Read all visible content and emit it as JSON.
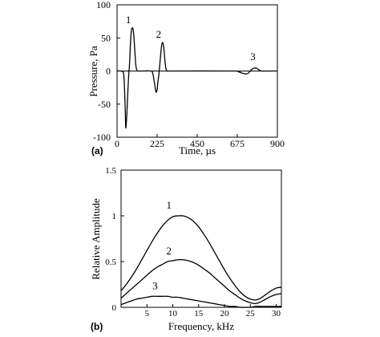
{
  "chart_data": [
    {
      "panel": "(a)",
      "type": "line",
      "xlabel": "Time, µs",
      "ylabel": "Pressure, Pa",
      "xlim": [
        0,
        900
      ],
      "ylim": [
        -100,
        100
      ],
      "xticks": [
        "0",
        "225",
        "450",
        "675",
        "900"
      ],
      "yticks": [
        "100",
        "50",
        "0",
        "-50",
        "-100"
      ],
      "zero_line": true,
      "series": [
        {
          "label": "1",
          "x": [
            0,
            20,
            35,
            40,
            45,
            48,
            50,
            55,
            60,
            65,
            70,
            75,
            80,
            85,
            90,
            95,
            100,
            105,
            110,
            115,
            120,
            125,
            130,
            140,
            150
          ],
          "y": [
            0,
            0,
            -2,
            -15,
            -50,
            -80,
            -85,
            -65,
            -35,
            -8,
            10,
            40,
            60,
            65,
            63,
            50,
            30,
            10,
            2,
            0,
            0,
            0,
            0,
            0,
            0
          ]
        },
        {
          "label": "2",
          "x": [
            150,
            190,
            200,
            210,
            217,
            220,
            225,
            230,
            235,
            240,
            245,
            250,
            255,
            260,
            265,
            270,
            275,
            280,
            285,
            300
          ],
          "y": [
            0,
            0,
            -3,
            -18,
            -30,
            -32,
            -28,
            -15,
            -5,
            10,
            25,
            38,
            43,
            40,
            28,
            12,
            3,
            0,
            0,
            0
          ]
        },
        {
          "label": "3",
          "x": [
            300,
            660,
            680,
            700,
            715,
            725,
            735,
            745,
            755,
            765,
            775,
            785,
            795,
            810,
            830,
            900
          ],
          "y": [
            0,
            0,
            -1,
            -3,
            -4,
            -4.5,
            -3.5,
            -1,
            2,
            4,
            4.5,
            4,
            2,
            0,
            0,
            0
          ]
        }
      ]
    },
    {
      "panel": "(b)",
      "type": "line",
      "xlabel": "Frequency, kHz",
      "ylabel": "Relative Amplitude",
      "xlim": [
        0,
        31
      ],
      "ylim": [
        0,
        1.5
      ],
      "xticks": [
        "5",
        "10",
        "15",
        "20",
        "25",
        "30"
      ],
      "yticks": [
        "1.5",
        "1",
        "0.5",
        "0"
      ],
      "series": [
        {
          "label": "1",
          "x": [
            0,
            1,
            2,
            3,
            4,
            5,
            6,
            7,
            8,
            9,
            10,
            11,
            12,
            13,
            14,
            15,
            16,
            17,
            18,
            19,
            20,
            21,
            22,
            23,
            24,
            25,
            26,
            27,
            28,
            29,
            30,
            31
          ],
          "y": [
            0.18,
            0.25,
            0.33,
            0.42,
            0.52,
            0.62,
            0.72,
            0.81,
            0.89,
            0.95,
            0.99,
            1.0,
            1.0,
            0.98,
            0.94,
            0.88,
            0.8,
            0.71,
            0.61,
            0.51,
            0.41,
            0.32,
            0.24,
            0.17,
            0.12,
            0.09,
            0.08,
            0.1,
            0.14,
            0.18,
            0.21,
            0.22
          ]
        },
        {
          "label": "2",
          "x": [
            0,
            1,
            2,
            3,
            4,
            5,
            6,
            7,
            8,
            9,
            10,
            11,
            12,
            13,
            14,
            15,
            16,
            17,
            18,
            19,
            20,
            21,
            22,
            23,
            24,
            25,
            26,
            27,
            28,
            29,
            30,
            31
          ],
          "y": [
            0.1,
            0.15,
            0.2,
            0.25,
            0.3,
            0.35,
            0.4,
            0.44,
            0.47,
            0.5,
            0.51,
            0.52,
            0.52,
            0.51,
            0.49,
            0.46,
            0.42,
            0.38,
            0.33,
            0.28,
            0.23,
            0.18,
            0.14,
            0.1,
            0.07,
            0.05,
            0.04,
            0.06,
            0.09,
            0.12,
            0.14,
            0.15
          ]
        },
        {
          "label": "3",
          "x": [
            0,
            1,
            2,
            3,
            4,
            5,
            6,
            7,
            8,
            9,
            10,
            11,
            12,
            13,
            14,
            15,
            16,
            17,
            18,
            19,
            20,
            21,
            22,
            23,
            24,
            25,
            26,
            27,
            28,
            29,
            30,
            31
          ],
          "y": [
            0.03,
            0.05,
            0.07,
            0.09,
            0.1,
            0.11,
            0.12,
            0.12,
            0.12,
            0.12,
            0.11,
            0.11,
            0.1,
            0.09,
            0.08,
            0.07,
            0.06,
            0.05,
            0.04,
            0.03,
            0.02,
            0.01,
            0.01,
            0.0,
            0.0,
            0.0,
            0.01,
            0.01,
            0.01,
            0.01,
            0.01,
            0.01
          ]
        }
      ]
    }
  ]
}
